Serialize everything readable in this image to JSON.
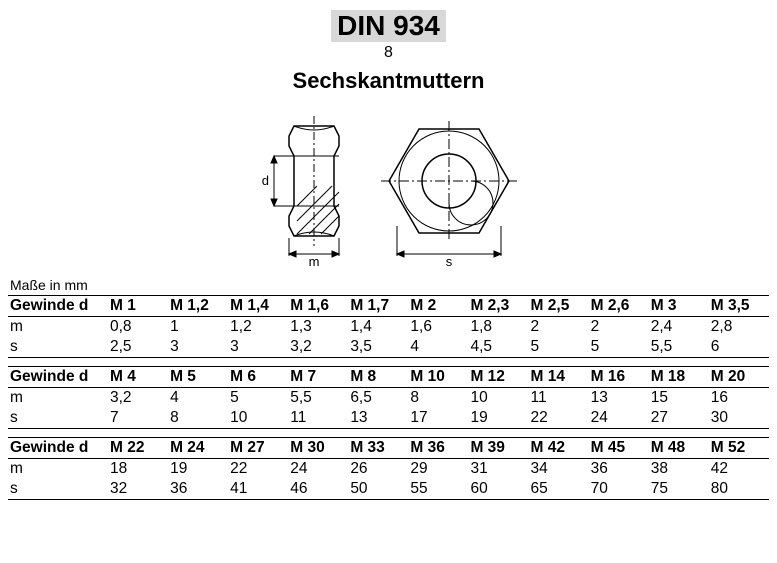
{
  "header": {
    "standard": "DIN 934",
    "grade": "8",
    "title": "Sechskantmuttern"
  },
  "diagram": {
    "labels": {
      "d": "d",
      "m": "m",
      "s": "s"
    },
    "stroke": "#000000",
    "fill": "#ffffff",
    "hatch": "#000000"
  },
  "caption": "Maße in mm",
  "table": {
    "row_labels": {
      "thread": "Gewinde d",
      "m": "m",
      "s": "s"
    },
    "sections": [
      {
        "thread": [
          "M 1",
          "M 1,2",
          "M 1,4",
          "M 1,6",
          "M 1,7",
          "M 2",
          "M 2,3",
          "M 2,5",
          "M 2,6",
          "M 3",
          "M 3,5"
        ],
        "m": [
          "0,8",
          "1",
          "1,2",
          "1,3",
          "1,4",
          "1,6",
          "1,8",
          "2",
          "2",
          "2,4",
          "2,8"
        ],
        "s": [
          "2,5",
          "3",
          "3",
          "3,2",
          "3,5",
          "4",
          "4,5",
          "5",
          "5",
          "5,5",
          "6"
        ]
      },
      {
        "thread": [
          "M 4",
          "M 5",
          "M 6",
          "M 7",
          "M 8",
          "M 10",
          "M 12",
          "M 14",
          "M 16",
          "M 18",
          "M 20"
        ],
        "m": [
          "3,2",
          "4",
          "5",
          "5,5",
          "6,5",
          "8",
          "10",
          "11",
          "13",
          "15",
          "16"
        ],
        "s": [
          "7",
          "8",
          "10",
          "11",
          "13",
          "17",
          "19",
          "22",
          "24",
          "27",
          "30"
        ]
      },
      {
        "thread": [
          "M 22",
          "M 24",
          "M 27",
          "M 30",
          "M 33",
          "M 36",
          "M 39",
          "M 42",
          "M 45",
          "M 48",
          "M 52"
        ],
        "m": [
          "18",
          "19",
          "22",
          "24",
          "26",
          "29",
          "31",
          "34",
          "36",
          "38",
          "42"
        ],
        "s": [
          "32",
          "36",
          "41",
          "46",
          "50",
          "55",
          "60",
          "65",
          "70",
          "75",
          "80"
        ]
      }
    ]
  }
}
